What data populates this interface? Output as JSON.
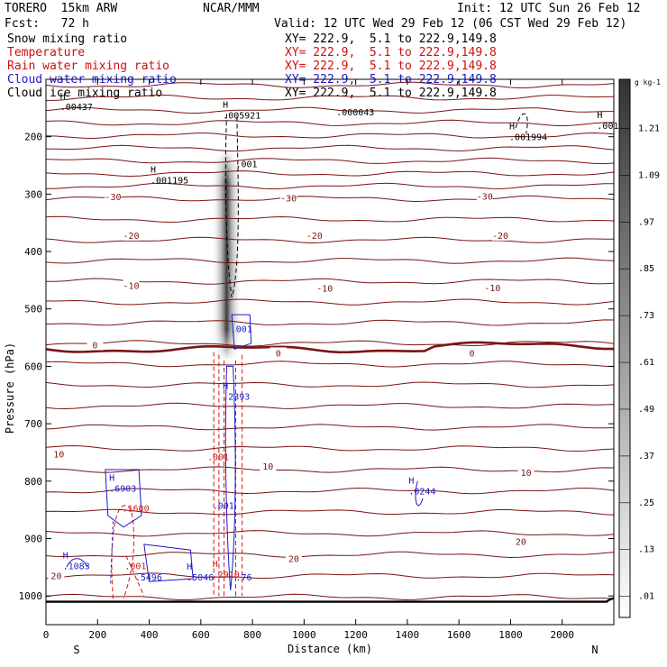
{
  "header": {
    "model": "TORERO  15km ARW",
    "center": "NCAR/MMM",
    "init": "Init: 12 UTC Sun 26 Feb 12",
    "fcst": "Fcst:   72 h",
    "valid": "Valid: 12 UTC Wed 29 Feb 12 (06 CST Wed 29 Feb 12)"
  },
  "fields": [
    {
      "name": "Snow mixing ratio",
      "xy": "XY= 222.9,  5.1 to 222.9,149.8",
      "color": "#000000"
    },
    {
      "name": "Temperature",
      "xy": "XY= 222.9,  5.1 to 222.9,149.8",
      "color": "#cc1111"
    },
    {
      "name": "Rain water mixing ratio",
      "xy": "XY= 222.9,  5.1 to 222.9,149.8",
      "color": "#cc1111"
    },
    {
      "name": "Cloud water mixing ratio",
      "xy": "XY= 222.9,  5.1 to 222.9,149.8",
      "color": "#1a1acc"
    },
    {
      "name": "Cloud ice mixing ratio",
      "xy": "XY= 222.9,  5.1 to 222.9,149.8",
      "color": "#000000"
    }
  ],
  "chart_data": {
    "type": "cross-section contour",
    "xlabel": "Distance (km)",
    "ylabel": "Pressure (hPa)",
    "xlim": [
      0,
      2200
    ],
    "ylim": [
      1050,
      100
    ],
    "x_ticks": [
      0,
      200,
      400,
      600,
      800,
      1000,
      1200,
      1400,
      1600,
      1800,
      2000
    ],
    "y_ticks": [
      200,
      300,
      400,
      500,
      600,
      700,
      800,
      900,
      1000
    ],
    "left_end": "S",
    "right_end": "N",
    "isotherm_interval_c": 5,
    "temperature_contours": [
      {
        "value": -30,
        "p": 320
      },
      {
        "value": -20,
        "p": 393
      },
      {
        "value": -10,
        "p": 466
      },
      {
        "value": 0,
        "p": 567
      },
      {
        "value": 10,
        "p": 770
      },
      {
        "value": 20,
        "p": 918
      }
    ],
    "temperature_labels": [
      {
        "text": "-30",
        "x": 260,
        "p": 306
      },
      {
        "text": "-30",
        "x": 940,
        "p": 308
      },
      {
        "text": "-30",
        "x": 1700,
        "p": 305
      },
      {
        "text": "-20",
        "x": 330,
        "p": 373
      },
      {
        "text": "-20",
        "x": 1040,
        "p": 373
      },
      {
        "text": "-20",
        "x": 1760,
        "p": 373
      },
      {
        "text": "-10",
        "x": 330,
        "p": 460
      },
      {
        "text": "-10",
        "x": 1080,
        "p": 465
      },
      {
        "text": "-10",
        "x": 1730,
        "p": 464
      },
      {
        "text": "0",
        "x": 190,
        "p": 564
      },
      {
        "text": "0",
        "x": 900,
        "p": 578
      },
      {
        "text": "0",
        "x": 1650,
        "p": 578
      },
      {
        "text": "10",
        "x": 50,
        "p": 754
      },
      {
        "text": "10",
        "x": 860,
        "p": 775
      },
      {
        "text": "10",
        "x": 1860,
        "p": 786
      },
      {
        "text": "20",
        "x": 40,
        "p": 966
      },
      {
        "text": "20",
        "x": 960,
        "p": 936
      },
      {
        "text": "20",
        "x": 1840,
        "p": 906
      }
    ],
    "snow_colorbar": {
      "unit": "g kg-1",
      "levels": [
        "1.21",
        "1.09",
        ".97",
        ".85",
        ".73",
        ".61",
        ".49",
        ".37",
        ".25",
        ".13",
        ".01"
      ]
    },
    "annotations": [
      {
        "text": "H",
        "value": ".005921",
        "x": 720,
        "p": 165,
        "field": "ice"
      },
      {
        "text": "",
        "value": ".000043",
        "x": 1160,
        "p": 160,
        "field": "ice"
      },
      {
        "text": "H",
        "value": ".001994",
        "x": 1830,
        "p": 203,
        "field": "ice"
      },
      {
        "text": "H",
        "value": ".001",
        "x": 2170,
        "p": 183,
        "field": "ice"
      },
      {
        "text": "H",
        "value": ".001195",
        "x": 440,
        "p": 278,
        "field": "ice"
      },
      {
        "text": "",
        "value": ".001",
        "x": 770,
        "p": 250,
        "field": "ice"
      },
      {
        "text": "H",
        "value": ".00437",
        "x": 90,
        "p": 150,
        "field": "ice"
      },
      {
        "text": "",
        "value": ".001",
        "x": 750,
        "p": 537,
        "field": "cloud"
      },
      {
        "text": "H",
        "value": ".2393",
        "x": 720,
        "p": 655,
        "field": "cloud"
      },
      {
        "text": "",
        "value": ".001",
        "x": 660,
        "p": 760,
        "field": "rain"
      },
      {
        "text": "H",
        "value": ".6903",
        "x": 280,
        "p": 815,
        "field": "cloud"
      },
      {
        "text": "",
        "value": ".1600",
        "x": 330,
        "p": 850,
        "field": "rain"
      },
      {
        "text": "",
        "value": ".001",
        "x": 680,
        "p": 845,
        "field": "cloud"
      },
      {
        "text": "H",
        "value": ".0244",
        "x": 1440,
        "p": 820,
        "field": "cloud"
      },
      {
        "text": "H",
        "value": ".1083",
        "x": 100,
        "p": 950,
        "field": "cloud"
      },
      {
        "text": "",
        "value": ".001",
        "x": 340,
        "p": 950,
        "field": "rain"
      },
      {
        "text": "",
        "value": ".5496",
        "x": 380,
        "p": 970,
        "field": "cloud"
      },
      {
        "text": "H",
        "value": ".5046",
        "x": 580,
        "p": 970,
        "field": "cloud"
      },
      {
        "text": "H",
        "value": ".2910",
        "x": 680,
        "p": 965,
        "field": "rain"
      },
      {
        "text": "",
        "value": ".76",
        "x": 770,
        "p": 970,
        "field": "cloud"
      }
    ]
  }
}
